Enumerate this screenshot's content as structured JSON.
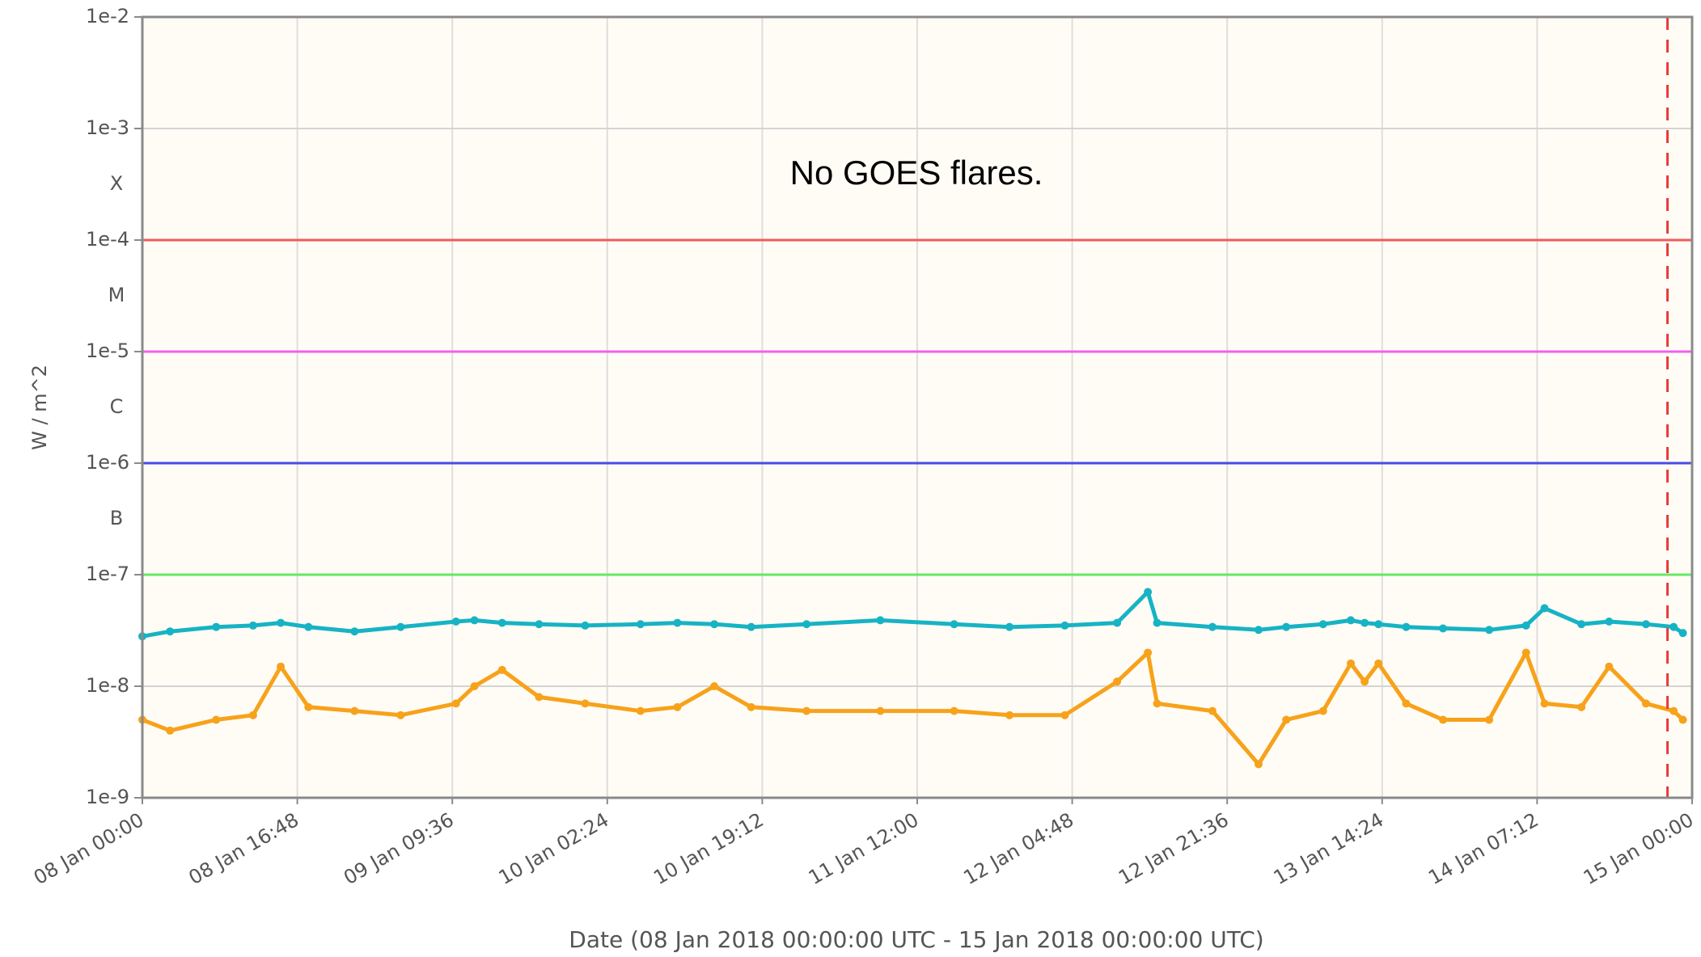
{
  "chart_data": {
    "type": "line",
    "annotation": "No GOES flares.",
    "y_label": "W / m^2",
    "x_label": "Date (08 Jan 2018 00:00:00 UTC - 15 Jan 2018 00:00:00 UTC)",
    "log_y": true,
    "grid": true,
    "ylim": [
      1e-09,
      0.01
    ],
    "yticks": [
      {
        "value": 0.01,
        "label": "1e-2"
      },
      {
        "value": 0.001,
        "label": "1e-3"
      },
      {
        "value": 0.0001,
        "label": "1e-4"
      },
      {
        "value": 1e-05,
        "label": "1e-5"
      },
      {
        "value": 1e-06,
        "label": "1e-6"
      },
      {
        "value": 1e-07,
        "label": "1e-7"
      },
      {
        "value": 1e-08,
        "label": "1e-8"
      },
      {
        "value": 1e-09,
        "label": "1e-9"
      }
    ],
    "class_labels": [
      {
        "value": 0.000316,
        "label": "X"
      },
      {
        "value": 3.16e-05,
        "label": "M"
      },
      {
        "value": 3.16e-06,
        "label": "C"
      },
      {
        "value": 3.16e-07,
        "label": "B"
      }
    ],
    "thresholds": [
      {
        "value": 0.0001,
        "color": "#f25a5a"
      },
      {
        "value": 1e-05,
        "color": "#f060f0"
      },
      {
        "value": 1e-06,
        "color": "#4a4ae6"
      },
      {
        "value": 1e-07,
        "color": "#66e866"
      }
    ],
    "marker_time": "14 Jan 21:20",
    "marker_color": "#e83a3a",
    "xlim": [
      "08 Jan 00:00",
      "15 Jan 00:00"
    ],
    "xticks": [
      "08 Jan 00:00",
      "08 Jan 16:48",
      "09 Jan 09:36",
      "10 Jan 02:24",
      "10 Jan 19:12",
      "11 Jan 12:00",
      "12 Jan 04:48",
      "12 Jan 21:36",
      "13 Jan 14:24",
      "14 Jan 07:12",
      "15 Jan 00:00"
    ],
    "x": [
      "08 Jan 00:00",
      "08 Jan 03:00",
      "08 Jan 08:00",
      "08 Jan 12:00",
      "08 Jan 15:00",
      "08 Jan 18:00",
      "08 Jan 23:00",
      "09 Jan 04:00",
      "09 Jan 10:00",
      "09 Jan 12:00",
      "09 Jan 15:00",
      "09 Jan 19:00",
      "10 Jan 00:00",
      "10 Jan 06:00",
      "10 Jan 10:00",
      "10 Jan 14:00",
      "10 Jan 18:00",
      "11 Jan 00:00",
      "11 Jan 08:00",
      "11 Jan 16:00",
      "11 Jan 22:00",
      "12 Jan 04:00",
      "12 Jan 09:40",
      "12 Jan 13:00",
      "12 Jan 14:00",
      "12 Jan 20:00",
      "13 Jan 01:00",
      "13 Jan 04:00",
      "13 Jan 08:00",
      "13 Jan 11:00",
      "13 Jan 12:30",
      "13 Jan 14:00",
      "13 Jan 17:00",
      "13 Jan 21:00",
      "14 Jan 02:00",
      "14 Jan 06:00",
      "14 Jan 08:00",
      "14 Jan 12:00",
      "14 Jan 15:00",
      "14 Jan 19:00",
      "14 Jan 22:00",
      "14 Jan 23:00"
    ],
    "series": [
      {
        "color": "#17b3c4",
        "values": [
          2.8e-08,
          3.1e-08,
          3.4e-08,
          3.5e-08,
          3.7e-08,
          3.4e-08,
          3.1e-08,
          3.4e-08,
          3.8e-08,
          3.9e-08,
          3.7e-08,
          3.6e-08,
          3.5e-08,
          3.6e-08,
          3.7e-08,
          3.6e-08,
          3.4e-08,
          3.6e-08,
          3.9e-08,
          3.6e-08,
          3.4e-08,
          3.5e-08,
          3.7e-08,
          7e-08,
          3.7e-08,
          3.4e-08,
          3.2e-08,
          3.4e-08,
          3.6e-08,
          3.9e-08,
          3.7e-08,
          3.6e-08,
          3.4e-08,
          3.3e-08,
          3.2e-08,
          3.5e-08,
          5e-08,
          3.6e-08,
          3.8e-08,
          3.6e-08,
          3.4e-08,
          3e-08
        ]
      },
      {
        "color": "#f7a21b",
        "values": [
          5e-09,
          4e-09,
          5e-09,
          5.5e-09,
          1.5e-08,
          6.5e-09,
          6e-09,
          5.5e-09,
          7e-09,
          1e-08,
          1.4e-08,
          8e-09,
          7e-09,
          6e-09,
          6.5e-09,
          1e-08,
          6.5e-09,
          6e-09,
          6e-09,
          6e-09,
          5.5e-09,
          5.5e-09,
          1.1e-08,
          2e-08,
          7e-09,
          6e-09,
          2e-09,
          5e-09,
          6e-09,
          1.6e-08,
          1.1e-08,
          1.6e-08,
          7e-09,
          5e-09,
          5e-09,
          2e-08,
          7e-09,
          6.5e-09,
          1.5e-08,
          7e-09,
          6e-09,
          5e-09
        ]
      }
    ]
  }
}
